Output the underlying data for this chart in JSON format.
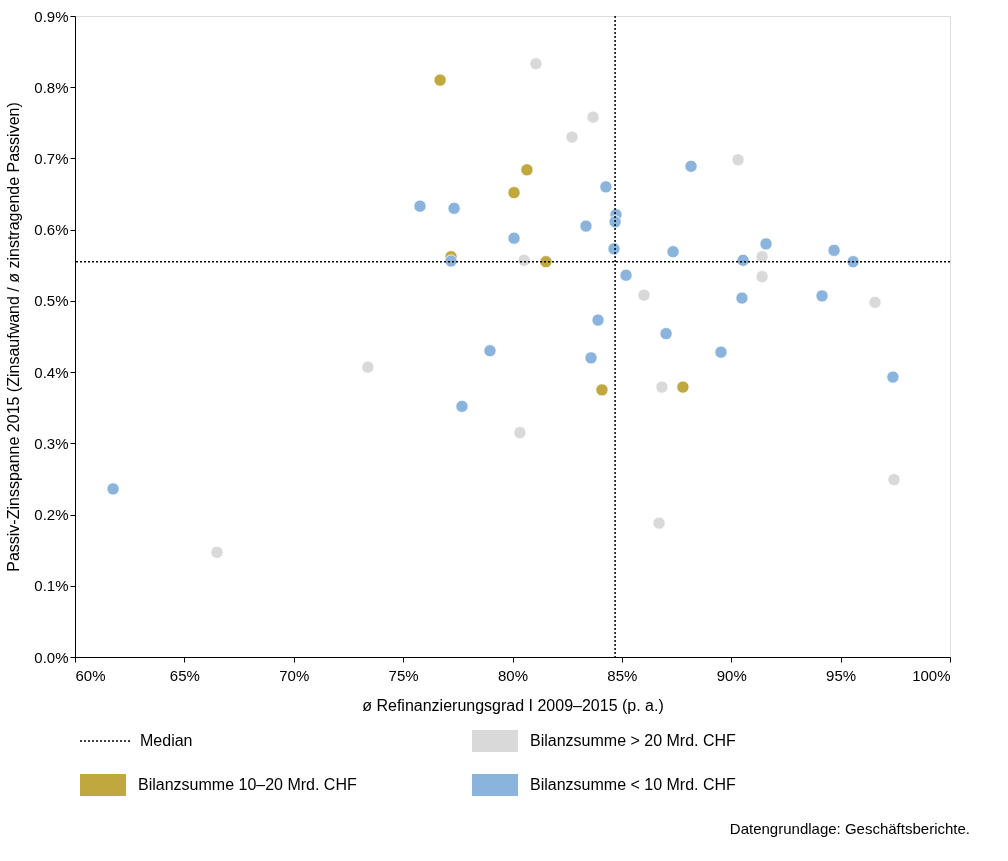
{
  "chart_data": {
    "type": "scatter",
    "xlabel": "ø Refinanzierungsgrad I 2009–2015 (p. a.)",
    "ylabel": "Passiv-Zinsspanne 2015 (Zinsaufwand / ø zinstragende Passiven)",
    "xlim": [
      60,
      100
    ],
    "xticks": [
      {
        "value": 60,
        "label": "60%"
      },
      {
        "value": 65,
        "label": "65%"
      },
      {
        "value": 70,
        "label": "70%"
      },
      {
        "value": 75,
        "label": "75%"
      },
      {
        "value": 80,
        "label": "80%"
      },
      {
        "value": 85,
        "label": "85%"
      },
      {
        "value": 90,
        "label": "90%"
      },
      {
        "value": 95,
        "label": "95%"
      },
      {
        "value": 100,
        "label": "100%"
      }
    ],
    "ylim": [
      0,
      0.9
    ],
    "yticks": [
      {
        "value": 0,
        "label": "0.0%"
      },
      {
        "value": 0.1,
        "label": "0.1%"
      },
      {
        "value": 0.2,
        "label": "0.2%"
      },
      {
        "value": 0.3,
        "label": "0.3%"
      },
      {
        "value": 0.4,
        "label": "0.4%"
      },
      {
        "value": 0.5,
        "label": "0.5%"
      },
      {
        "value": 0.6,
        "label": "0.6%"
      },
      {
        "value": 0.7,
        "label": "0.7%"
      },
      {
        "value": 0.8,
        "label": "0.8%"
      },
      {
        "value": 0.9,
        "label": "0.9%"
      }
    ],
    "grid": false,
    "legend": "bottom",
    "marker": "circle",
    "series": [
      {
        "name": "Bilanzsumme > 20 Mrd. CHF",
        "color": "#d9d9d9",
        "x": [
          81.07,
          83.68,
          82.72,
          90.31,
          80.53,
          91.41,
          91.41,
          86.01,
          96.57,
          73.39,
          86.83,
          80.34,
          97.44,
          86.7,
          66.49
        ],
        "values": [
          0.833,
          0.758,
          0.73,
          0.698,
          0.557,
          0.562,
          0.534,
          0.508,
          0.498,
          0.407,
          0.379,
          0.315,
          0.249,
          0.188,
          0.147
        ]
      },
      {
        "name": "Bilanzsumme 10–20 Mrd. CHF",
        "color": "#c0a83e",
        "x": [
          76.69,
          80.66,
          80.07,
          81.53,
          84.09,
          87.79,
          77.19
        ],
        "values": [
          0.81,
          0.684,
          0.652,
          0.555,
          0.375,
          0.379,
          0.562
        ]
      },
      {
        "name": "Bilanzsumme < 10 Mrd. CHF",
        "color": "#8ab4dc",
        "x": [
          75.77,
          77.33,
          84.27,
          88.16,
          84.73,
          84.69,
          83.36,
          80.07,
          84.64,
          87.34,
          91.59,
          94.7,
          95.57,
          90.54,
          77.19,
          85.19,
          90.49,
          94.15,
          83.91,
          87.02,
          78.97,
          83.59,
          89.53,
          97.39,
          77.69,
          61.74
        ],
        "values": [
          0.633,
          0.63,
          0.66,
          0.689,
          0.621,
          0.611,
          0.605,
          0.588,
          0.573,
          0.569,
          0.58,
          0.571,
          0.555,
          0.557,
          0.556,
          0.536,
          0.504,
          0.507,
          0.473,
          0.454,
          0.43,
          0.42,
          0.428,
          0.393,
          0.352,
          0.236
        ]
      }
    ],
    "ref_lines": [
      {
        "axis": "x",
        "value": 84.69,
        "label": "Median",
        "color": "#000000",
        "line_style": "dotted"
      },
      {
        "axis": "y",
        "value": 0.555,
        "color": "#000000",
        "line_style": "dotted"
      }
    ],
    "annotations": [
      "Datengrundlage: Geschäftsberichte."
    ]
  }
}
